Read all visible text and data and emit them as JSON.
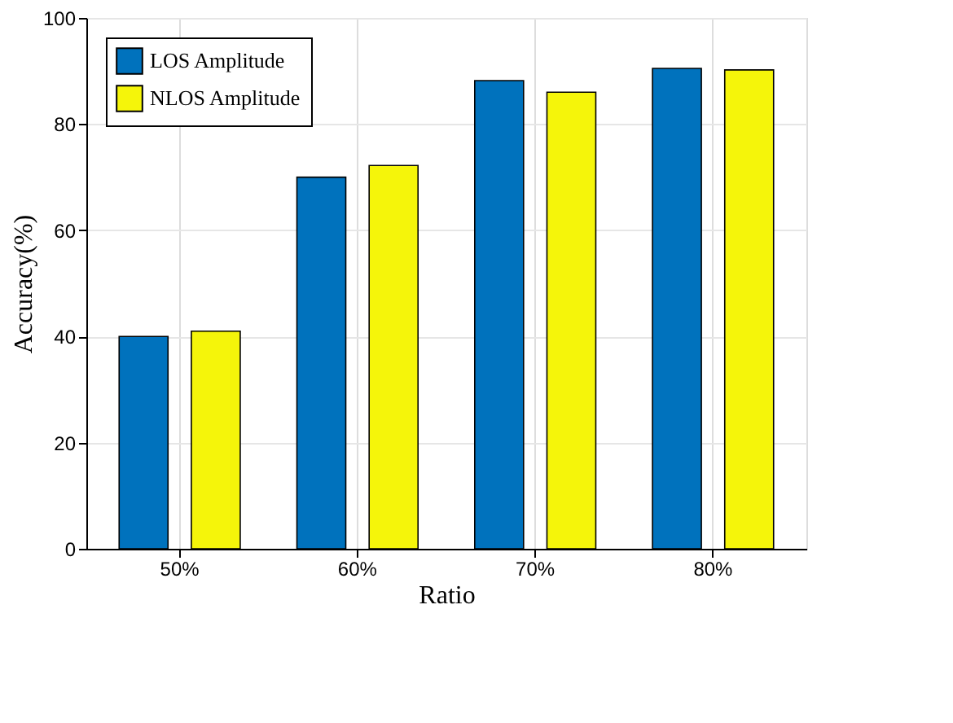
{
  "chart_data": {
    "type": "bar",
    "xlabel": "Ratio",
    "ylabel": "Accuracy(%)",
    "categories": [
      "50%",
      "60%",
      "70%",
      "80%"
    ],
    "series": [
      {
        "name": "LOS Amplitude",
        "color": "#0072bd",
        "values": [
          40,
          70,
          88.2,
          90.5
        ]
      },
      {
        "name": "NLOS Amplitude",
        "color": "#f5f50a",
        "values": [
          41,
          72.2,
          86,
          90.2
        ]
      }
    ],
    "ylim": [
      0,
      100
    ],
    "yticks": [
      0,
      20,
      40,
      60,
      80,
      100
    ],
    "grid": true,
    "legend": "top left"
  }
}
